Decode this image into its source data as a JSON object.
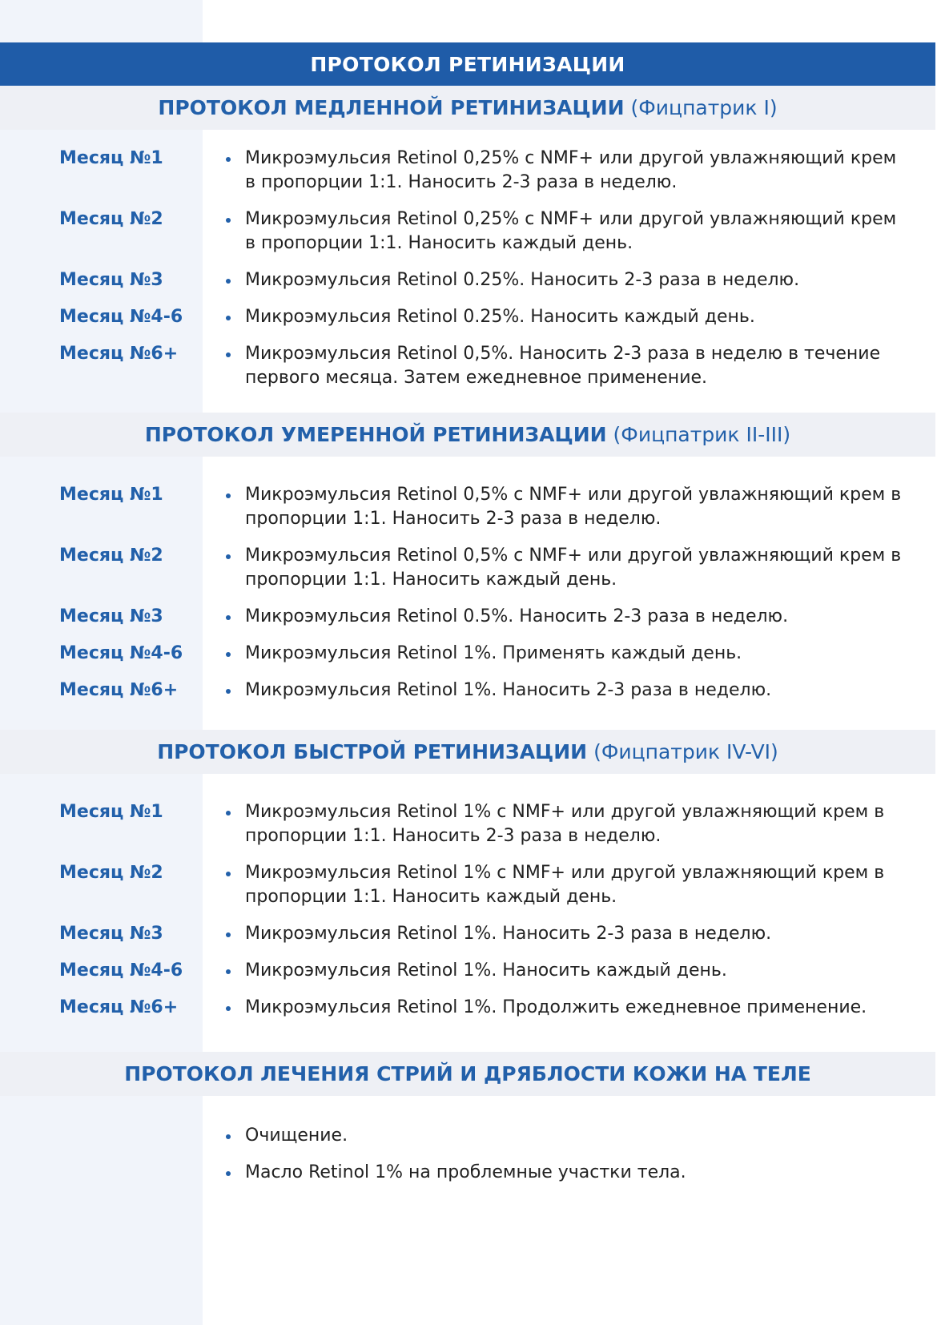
{
  "title": "ПРОТОКОЛ РЕТИНИЗАЦИИ",
  "colors": {
    "banner": "#1f5ca8",
    "accent": "#2260aa",
    "band": "#eef0f5",
    "left_column": "#f1f4fa"
  },
  "sections": [
    {
      "heading": "ПРОТОКОЛ МЕДЛЕННОЙ РЕТИНИЗАЦИИ",
      "subheading": "(Фицпатрик I)",
      "rows": [
        {
          "month": "Месяц №1",
          "text": "Микроэмульсия Retinol 0,25% с NMF+ или другой увлажняющий крем в пропорции 1:1. Наносить 2-3 раза в неделю."
        },
        {
          "month": "Месяц №2",
          "text": "Микроэмульсия Retinol 0,25% с NMF+ или другой увлажняющий крем в пропорции 1:1. Наносить каждый день."
        },
        {
          "month": "Месяц №3",
          "text": "Микроэмульсия Retinol 0.25%. Наносить 2-3 раза в неделю."
        },
        {
          "month": "Месяц №4-6",
          "text": "Микроэмульсия Retinol 0.25%. Наносить каждый день."
        },
        {
          "month": "Месяц №6+",
          "text": "Микроэмульсия Retinol 0,5%. Наносить 2-3 раза в неделю в течение первого месяца. Затем ежедневное применение."
        }
      ]
    },
    {
      "heading": "ПРОТОКОЛ УМЕРЕННОЙ РЕТИНИЗАЦИИ",
      "subheading": "(Фицпатрик II-III)",
      "rows": [
        {
          "month": "Месяц №1",
          "text": "Микроэмульсия Retinol 0,5% с NMF+ или другой увлажняющий крем в пропорции 1:1. Наносить 2-3 раза в неделю."
        },
        {
          "month": "Месяц №2",
          "text": "Микроэмульсия Retinol 0,5% с NMF+ или другой увлажняющий крем в пропорции 1:1. Наносить каждый день."
        },
        {
          "month": "Месяц №3",
          "text": "Микроэмульсия Retinol 0.5%. Наносить 2-3 раза в неделю."
        },
        {
          "month": "Месяц №4-6",
          "text": "Микроэмульсия Retinol 1%. Применять каждый день."
        },
        {
          "month": "Месяц №6+",
          "text": "Микроэмульсия Retinol 1%. Наносить 2-3 раза в неделю."
        }
      ]
    },
    {
      "heading": "ПРОТОКОЛ БЫСТРОЙ РЕТИНИЗАЦИИ",
      "subheading": "(Фицпатрик IV-VI)",
      "rows": [
        {
          "month": "Месяц №1",
          "text": "Микроэмульсия Retinol 1% с NMF+ или другой увлажняющий крем в пропорции 1:1. Наносить 2-3 раза в неделю."
        },
        {
          "month": "Месяц №2",
          "text": "Микроэмульсия Retinol 1% с NMF+ или другой увлажняющий крем в пропорции 1:1. Наносить каждый день."
        },
        {
          "month": "Месяц №3",
          "text": "Микроэмульсия Retinol 1%. Наносить 2-3 раза в неделю."
        },
        {
          "month": "Месяц №4-6",
          "text": "Микроэмульсия Retinol 1%. Наносить каждый день."
        },
        {
          "month": "Месяц №6+",
          "text": "Микроэмульсия Retinol 1%. Продолжить ежедневное применение."
        }
      ]
    }
  ],
  "body_section": {
    "heading": "ПРОТОКОЛ ЛЕЧЕНИЯ СТРИЙ И ДРЯБЛОСТИ КОЖИ НА ТЕЛЕ",
    "items": [
      "Очищение.",
      "Масло Retinol 1% на проблемные участки тела."
    ]
  }
}
